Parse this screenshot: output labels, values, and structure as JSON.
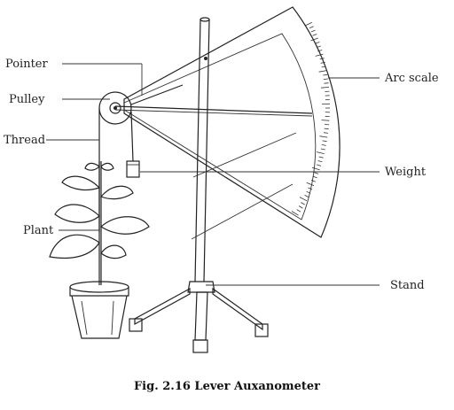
{
  "figure": {
    "caption": "Fig. 2.16 Lever Auxanometer",
    "labels": {
      "pointer": "Pointer",
      "pulley": "Pulley",
      "thread": "Thread",
      "plant": "Plant",
      "arc_scale": "Arc scale",
      "weight": "Weight",
      "stand": "Stand"
    }
  },
  "colors": {
    "ink": "#222222",
    "background": "#ffffff"
  }
}
